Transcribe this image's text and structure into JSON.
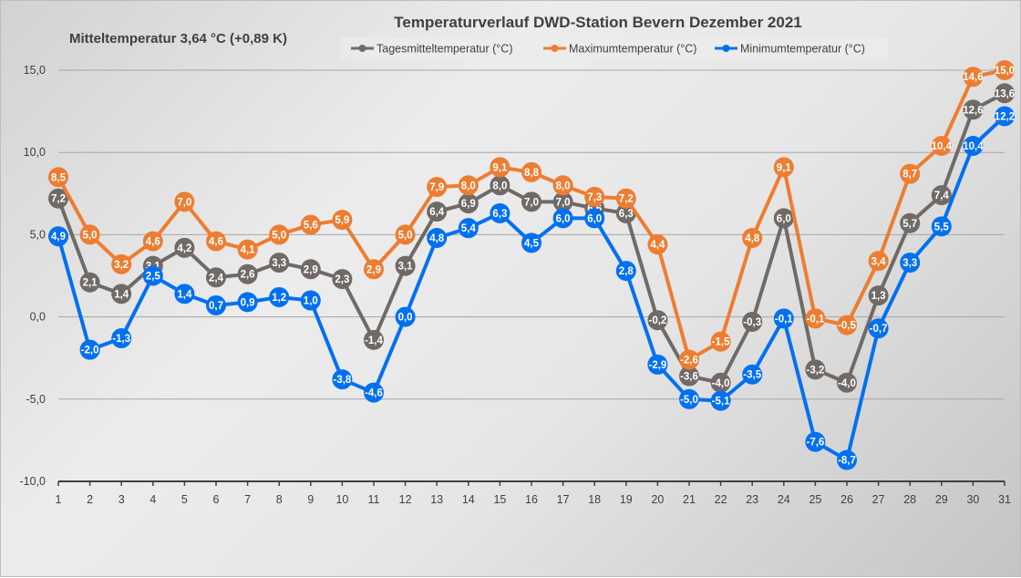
{
  "chart_data": {
    "type": "line",
    "title": "Temperaturverlauf  DWD-Station  Bevern Dezember 2021",
    "subtitle": "Mitteltemperatur 3,64 °C (+0,89 K)",
    "xlabel": "",
    "ylabel": "",
    "x": [
      1,
      2,
      3,
      4,
      5,
      6,
      7,
      8,
      9,
      10,
      11,
      12,
      13,
      14,
      15,
      16,
      17,
      18,
      19,
      20,
      21,
      22,
      23,
      24,
      25,
      26,
      27,
      28,
      29,
      30,
      31
    ],
    "ylim": [
      -10,
      15
    ],
    "yticks": [
      -10,
      -5,
      0,
      5,
      10,
      15
    ],
    "ytick_labels": [
      "-10,0",
      "-5,0",
      "0,0",
      "5,0",
      "10,0",
      "15,0"
    ],
    "grid": true,
    "legend_position": "top-center",
    "series": [
      {
        "name": "Tagesmitteltemperatur (°C)",
        "color": "#706a67",
        "values": [
          7.2,
          2.1,
          1.4,
          3.1,
          4.2,
          2.4,
          2.6,
          3.3,
          2.9,
          2.3,
          -1.4,
          3.1,
          6.4,
          6.9,
          8.0,
          7.0,
          7.0,
          6.6,
          6.3,
          -0.2,
          -3.6,
          -4.0,
          -0.3,
          6.0,
          -3.2,
          -4.0,
          1.3,
          5.7,
          7.4,
          12.6,
          13.6
        ]
      },
      {
        "name": "Maximumtemperatur (°C)",
        "color": "#ed7d31",
        "values": [
          8.5,
          5.0,
          3.2,
          4.6,
          7.0,
          4.6,
          4.1,
          5.0,
          5.6,
          5.9,
          2.9,
          5.0,
          7.9,
          8.0,
          9.1,
          8.8,
          8.0,
          7.3,
          7.2,
          4.4,
          -2.6,
          -1.5,
          4.8,
          9.1,
          -0.1,
          -0.5,
          3.4,
          8.7,
          10.4,
          14.6,
          15.0
        ]
      },
      {
        "name": "Minimumtemperatur (°C)",
        "color": "#0070f0",
        "values": [
          4.9,
          -2.0,
          -1.3,
          2.5,
          1.4,
          0.7,
          0.9,
          1.2,
          1.0,
          -3.8,
          -4.6,
          0.0,
          4.8,
          5.4,
          6.3,
          4.5,
          6.0,
          6.0,
          2.8,
          -2.9,
          -5.0,
          -5.1,
          -3.5,
          -0.1,
          -7.6,
          -8.7,
          -0.7,
          3.3,
          5.5,
          10.4,
          12.2
        ]
      }
    ]
  }
}
